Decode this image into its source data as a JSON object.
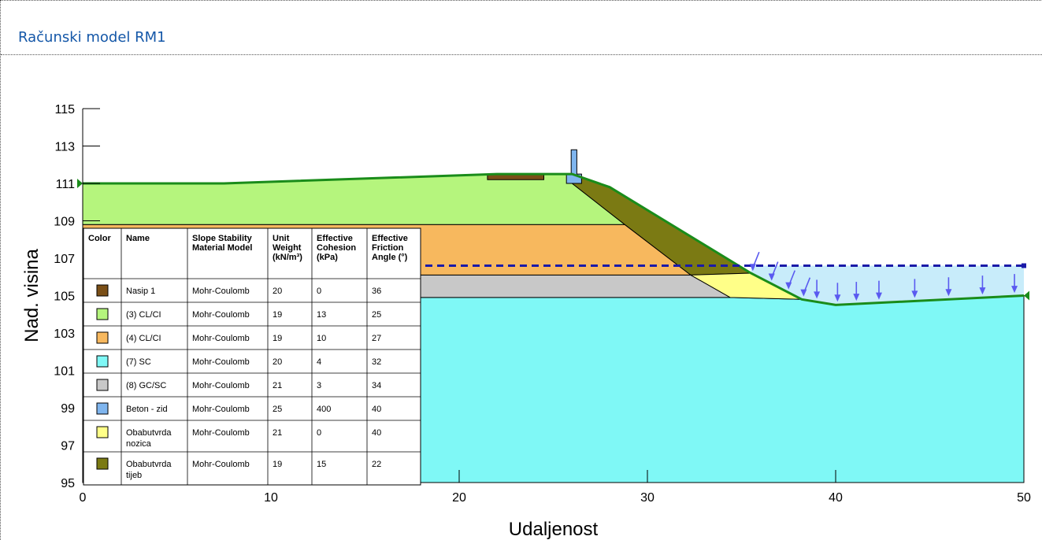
{
  "panel": {
    "title": "Računski model RM1"
  },
  "chart_data": {
    "type": "diagram",
    "xlabel": "Udaljenost",
    "ylabel": "Nad. visina",
    "xlim": [
      0,
      50
    ],
    "ylim": [
      95,
      115
    ],
    "x_ticks": [
      "0",
      "10",
      "20",
      "30",
      "40",
      "50"
    ],
    "y_ticks": [
      "95",
      "97",
      "99",
      "101",
      "103",
      "105",
      "107",
      "109",
      "111",
      "113",
      "115"
    ],
    "regions": [
      {
        "material": "(7) SC",
        "points": [
          [
            0,
            95
          ],
          [
            0,
            104.9
          ],
          [
            34.4,
            104.9
          ],
          [
            38.2,
            104.8
          ],
          [
            40,
            104.5
          ],
          [
            50,
            105
          ],
          [
            50,
            95
          ]
        ]
      },
      {
        "material": "(8) GC/SC",
        "points": [
          [
            0,
            106.1
          ],
          [
            32.3,
            106.1
          ],
          [
            34.4,
            104.9
          ],
          [
            0,
            104.9
          ]
        ]
      },
      {
        "material": "(4) CL/CI",
        "points": [
          [
            0,
            108.8
          ],
          [
            28.8,
            108.8
          ],
          [
            32.3,
            106.1
          ],
          [
            0,
            106.1
          ]
        ]
      },
      {
        "material": "(3) CL/CI",
        "points": [
          [
            0,
            111
          ],
          [
            7.5,
            111
          ],
          [
            22,
            111.5
          ],
          [
            26,
            111.5
          ],
          [
            26,
            111
          ],
          [
            28.8,
            108.8
          ],
          [
            0,
            108.8
          ]
        ]
      },
      {
        "material": "Obabutvrda tijeb",
        "points": [
          [
            26,
            111.5
          ],
          [
            28,
            110.8
          ],
          [
            35.5,
            106.2
          ],
          [
            32.3,
            106.1
          ],
          [
            28.8,
            108.8
          ],
          [
            26,
            111
          ]
        ]
      },
      {
        "material": "Obabutvrda nozica",
        "points": [
          [
            32.3,
            106.1
          ],
          [
            35.5,
            106.2
          ],
          [
            38.2,
            104.8
          ],
          [
            34.4,
            104.9
          ]
        ]
      },
      {
        "material": "Nasip 1",
        "points": [
          [
            21.5,
            111.5
          ],
          [
            24.5,
            111.5
          ],
          [
            24.5,
            111.2
          ],
          [
            21.5,
            111.2
          ]
        ]
      },
      {
        "material": "Beton - zid",
        "points": [
          [
            25.95,
            112.8
          ],
          [
            26.25,
            112.8
          ],
          [
            26.25,
            111.5
          ],
          [
            26.5,
            111.5
          ],
          [
            26.5,
            111
          ],
          [
            25.7,
            111
          ],
          [
            25.7,
            111.5
          ],
          [
            25.95,
            111.5
          ]
        ]
      },
      {
        "material": "water",
        "points": [
          [
            35.5,
            106.6
          ],
          [
            50,
            106.6
          ],
          [
            50,
            105
          ],
          [
            40,
            104.5
          ],
          [
            38.2,
            104.8
          ],
          [
            35.5,
            106.2
          ]
        ]
      }
    ],
    "water_level": {
      "y": 106.6,
      "x_from": 0,
      "x_to": 50
    },
    "ground_line": [
      [
        0,
        111
      ],
      [
        7.5,
        111
      ],
      [
        22,
        111.5
      ],
      [
        26,
        111.5
      ],
      [
        28,
        110.8
      ],
      [
        35.5,
        106.2
      ],
      [
        38.2,
        104.8
      ],
      [
        40,
        104.5
      ],
      [
        50,
        105
      ]
    ],
    "load_arrows_x": [
      35.6,
      36.6,
      37.5,
      38.3,
      39,
      40.1,
      41.1,
      42.3,
      44.2,
      46,
      47.8,
      49.5
    ],
    "legend": {
      "headers": [
        "Color",
        "Name",
        "Slope Stability Material Model",
        "Unit Weight (kN/m³)",
        "Effective Cohesion (kPa)",
        "Effective Friction Angle (°)"
      ],
      "rows": [
        {
          "color": "#7a4f17",
          "name": "Nasip 1",
          "model": "Mohr-Coulomb",
          "unit_weight": "20",
          "cohesion": "0",
          "friction": "36"
        },
        {
          "color": "#b5f57d",
          "name": "(3) CL/CI",
          "model": "Mohr-Coulomb",
          "unit_weight": "19",
          "cohesion": "13",
          "friction": "25"
        },
        {
          "color": "#f7b85e",
          "name": "(4) CL/CI",
          "model": "Mohr-Coulomb",
          "unit_weight": "19",
          "cohesion": "10",
          "friction": "27"
        },
        {
          "color": "#7ff8f6",
          "name": "(7) SC",
          "model": "Mohr-Coulomb",
          "unit_weight": "20",
          "cohesion": "4",
          "friction": "32"
        },
        {
          "color": "#c8c8c8",
          "name": "(8) GC/SC",
          "model": "Mohr-Coulomb",
          "unit_weight": "21",
          "cohesion": "3",
          "friction": "34"
        },
        {
          "color": "#7fb5ee",
          "name": "Beton - zid",
          "model": "Mohr-Coulomb",
          "unit_weight": "25",
          "cohesion": "400",
          "friction": "40"
        },
        {
          "color": "#ffff88",
          "name": "Obabutvrda nozica",
          "model": "Mohr-Coulomb",
          "unit_weight": "21",
          "cohesion": "0",
          "friction": "40"
        },
        {
          "color": "#7b7a13",
          "name": "Obabutvrda tijeb",
          "model": "Mohr-Coulomb",
          "unit_weight": "19",
          "cohesion": "15",
          "friction": "22"
        }
      ]
    },
    "colors": {
      "materials": {
        "(7) SC": "#7ff8f6",
        "(8) GC/SC": "#c8c8c8",
        "(4) CL/CI": "#f7b85e",
        "(3) CL/CI": "#b5f57d",
        "Obabutvrda tijeb": "#7b7a13",
        "Obabutvrda nozica": "#ffff88",
        "Nasip 1": "#7a4f17",
        "Beton - zid": "#7fb5ee",
        "water": "#c8ecfa"
      },
      "ground_line": "#1a8c1a",
      "water_line": "#1a1aa8",
      "arrows": "#5a5af0",
      "title": "#1457a8"
    }
  }
}
